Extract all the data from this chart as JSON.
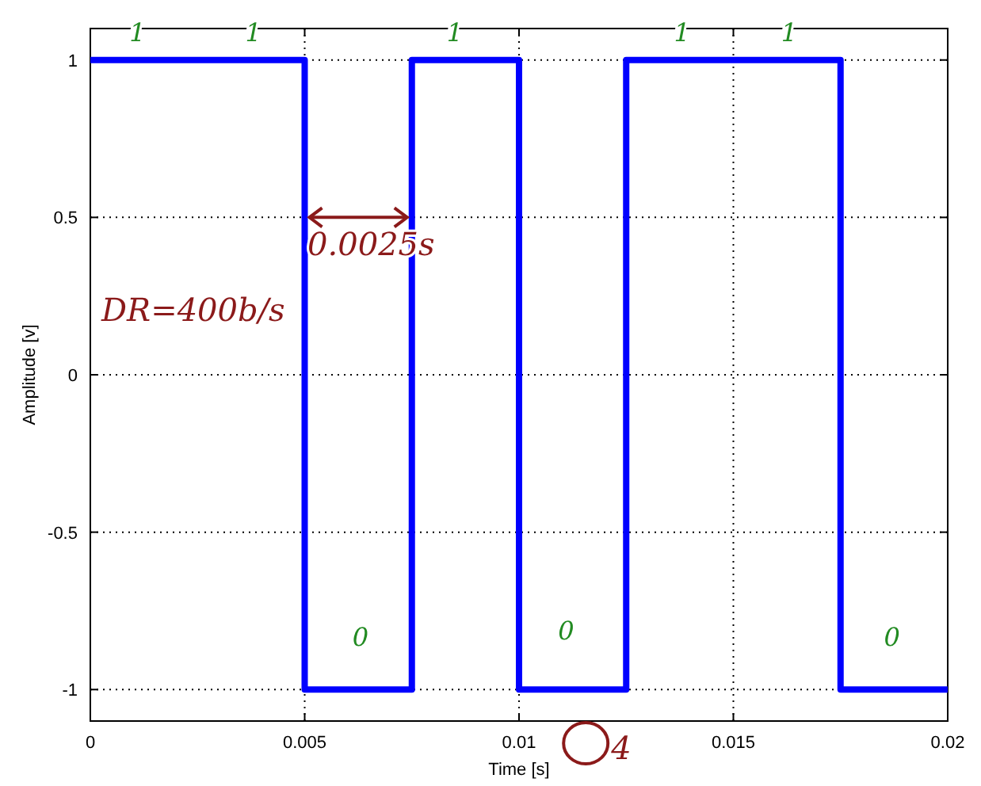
{
  "chart_data": {
    "type": "step",
    "xlabel": "Time [s]",
    "ylabel": "Amplitude [v]",
    "x": [
      0,
      0.005,
      0.0075,
      0.01,
      0.0125,
      0.0175,
      0.02
    ],
    "series": [
      {
        "color": "#0000ff",
        "values": [
          1,
          -1,
          1,
          -1,
          1,
          -1,
          -1
        ]
      }
    ],
    "xlim": [
      0,
      0.02
    ],
    "ylim": [
      -1.1,
      1.1
    ],
    "xticks": [
      0,
      0.005,
      0.01,
      0.015,
      0.02
    ],
    "yticks": [
      -1,
      -0.5,
      0,
      0.5,
      1
    ],
    "grid": true,
    "line_style": "solid",
    "marker": "none",
    "annotations": [
      "1",
      "1",
      "1",
      "1",
      "1",
      "0",
      "0",
      "0",
      "0.0025s",
      "DR=400b/s",
      "4"
    ]
  }
}
